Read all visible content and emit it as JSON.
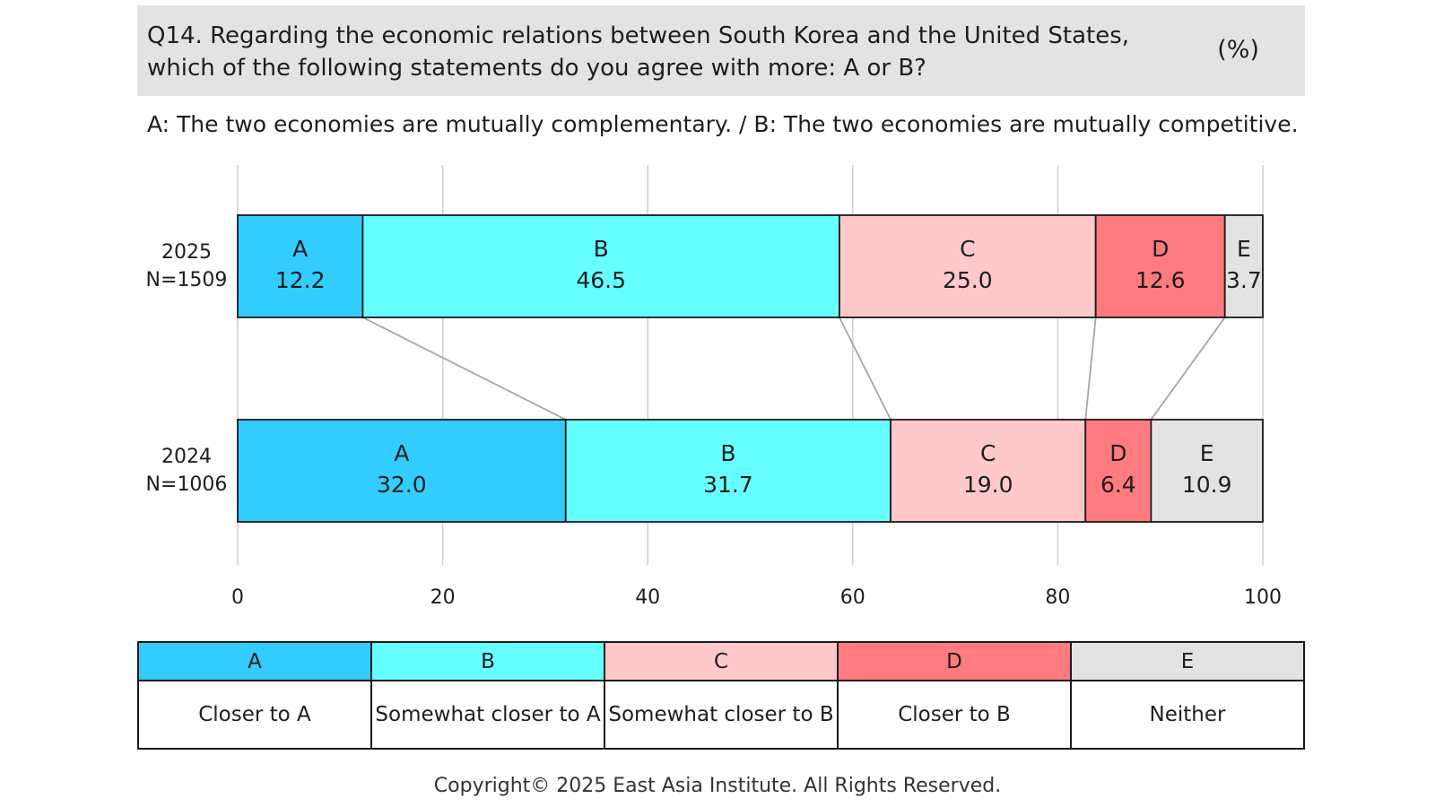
{
  "header": {
    "question_line1": "Q14. Regarding the economic relations between South Korea and the United States,",
    "question_line2": "which of the following statements do you agree with more: A or B?",
    "unit": "(%)"
  },
  "subtitle": "A: The two economies are mutually complementary. / B: The two economies are mutually competitive.",
  "chart_data": {
    "type": "bar",
    "orientation": "horizontal",
    "stacked": true,
    "xlim": [
      0,
      100
    ],
    "xticks": [
      0,
      20,
      40,
      60,
      80,
      100
    ],
    "grid": true,
    "connector_lines": true,
    "segments": [
      "A",
      "B",
      "C",
      "D",
      "E"
    ],
    "colors": {
      "A": "#33ccff",
      "B": "#66ffff",
      "C": "#ffc9c9",
      "D": "#ff7b7f",
      "E": "#e4e3e4"
    },
    "rows": [
      {
        "year": "2025",
        "n": "N=1509",
        "values": [
          12.2,
          46.5,
          25.0,
          12.6,
          3.7
        ],
        "labels": [
          "12.2",
          "46.5",
          "25.0",
          "12.6",
          "3.7"
        ]
      },
      {
        "year": "2024",
        "n": "N=1006",
        "values": [
          32.0,
          31.7,
          19.0,
          6.4,
          10.9
        ],
        "labels": [
          "32.0",
          "31.7",
          "19.0",
          "6.4",
          "10.9"
        ]
      }
    ]
  },
  "legend": [
    {
      "code": "A",
      "desc": "Closer to A"
    },
    {
      "code": "B",
      "desc": "Somewhat closer to A"
    },
    {
      "code": "C",
      "desc": "Somewhat closer to B"
    },
    {
      "code": "D",
      "desc": "Closer to B"
    },
    {
      "code": "E",
      "desc": "Neither"
    }
  ],
  "copyright": "Copyright© 2025 East Asia Institute. All Rights Reserved."
}
